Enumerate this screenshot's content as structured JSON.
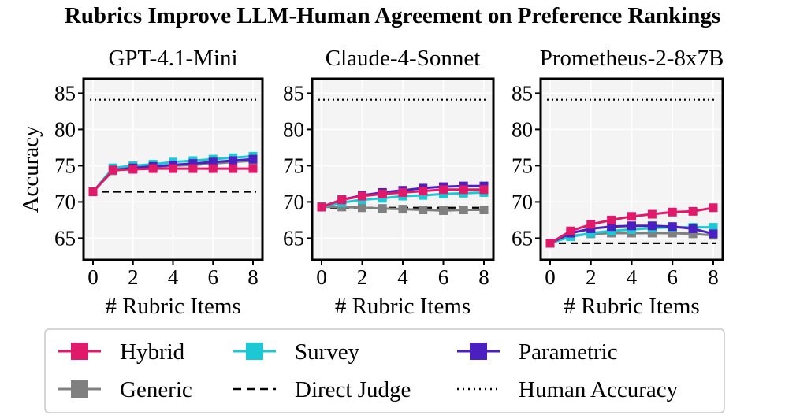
{
  "figure": {
    "title": "Rubrics Improve LLM-Human Agreement on Preference Rankings"
  },
  "colors": {
    "Hybrid": "#e0196b",
    "Survey": "#1cc8d4",
    "Parametric": "#4a20c0",
    "Generic": "#808080",
    "Direct Judge": "#000000",
    "Human Accuracy": "#000000",
    "panel_bg": "#f4f4f4",
    "grid": "#ffffff"
  },
  "legend": {
    "placement": "bottom",
    "entries": [
      {
        "name": "Hybrid",
        "style": "line-square"
      },
      {
        "name": "Survey",
        "style": "line-square"
      },
      {
        "name": "Parametric",
        "style": "line-square"
      },
      {
        "name": "Generic",
        "style": "line-square"
      },
      {
        "name": "Direct Judge",
        "style": "dashed"
      },
      {
        "name": "Human Accuracy",
        "style": "dotted"
      }
    ]
  },
  "chart_data": [
    {
      "type": "line",
      "title": "GPT-4.1-Mini",
      "xlabel": "# Rubric Items",
      "ylabel": "Accuracy",
      "xlim": [
        0,
        8
      ],
      "ylim": [
        62,
        87
      ],
      "xticks": [
        0,
        2,
        4,
        6,
        8
      ],
      "yticks": [
        65,
        70,
        75,
        80,
        85
      ],
      "grid": true,
      "x": [
        0,
        1,
        2,
        3,
        4,
        5,
        6,
        7,
        8
      ],
      "series": [
        {
          "name": "Generic",
          "values": [
            71.4,
            74.3,
            74.6,
            74.8,
            75.0,
            75.1,
            75.3,
            75.5,
            75.7
          ]
        },
        {
          "name": "Survey",
          "values": [
            71.4,
            74.7,
            75.0,
            75.2,
            75.5,
            75.7,
            75.9,
            76.1,
            76.3
          ]
        },
        {
          "name": "Parametric",
          "values": [
            71.4,
            74.4,
            74.7,
            74.9,
            75.1,
            75.3,
            75.5,
            75.7,
            75.9
          ]
        },
        {
          "name": "Hybrid",
          "values": [
            71.4,
            74.4,
            74.5,
            74.6,
            74.6,
            74.6,
            74.6,
            74.6,
            74.6
          ]
        }
      ],
      "reference_lines": [
        {
          "name": "Direct Judge",
          "value": 71.4
        },
        {
          "name": "Human Accuracy",
          "value": 84.1
        }
      ]
    },
    {
      "type": "line",
      "title": "Claude-4-Sonnet",
      "xlabel": "# Rubric Items",
      "ylabel": "",
      "xlim": [
        0,
        8
      ],
      "ylim": [
        62,
        87
      ],
      "xticks": [
        0,
        2,
        4,
        6,
        8
      ],
      "yticks": [
        65,
        70,
        75,
        80,
        85
      ],
      "grid": true,
      "x": [
        0,
        1,
        2,
        3,
        4,
        5,
        6,
        7,
        8
      ],
      "series": [
        {
          "name": "Generic",
          "values": [
            69.3,
            69.3,
            69.2,
            69.1,
            69.0,
            68.9,
            68.8,
            68.9,
            68.9
          ]
        },
        {
          "name": "Survey",
          "values": [
            69.3,
            69.9,
            70.3,
            70.5,
            70.8,
            70.9,
            71.1,
            71.2,
            71.3
          ]
        },
        {
          "name": "Parametric",
          "values": [
            69.3,
            70.3,
            70.9,
            71.3,
            71.6,
            71.9,
            72.1,
            72.2,
            72.2
          ]
        },
        {
          "name": "Hybrid",
          "values": [
            69.3,
            70.3,
            70.8,
            71.1,
            71.3,
            71.5,
            71.7,
            71.7,
            71.7
          ]
        }
      ],
      "reference_lines": [
        {
          "name": "Direct Judge",
          "value": 69.2
        },
        {
          "name": "Human Accuracy",
          "value": 84.1
        }
      ]
    },
    {
      "type": "line",
      "title": "Prometheus-2-8x7B",
      "xlabel": "# Rubric Items",
      "ylabel": "",
      "xlim": [
        0,
        8
      ],
      "ylim": [
        62,
        87
      ],
      "xticks": [
        0,
        2,
        4,
        6,
        8
      ],
      "yticks": [
        65,
        70,
        75,
        80,
        85
      ],
      "grid": true,
      "x": [
        0,
        1,
        2,
        3,
        4,
        5,
        6,
        7,
        8
      ],
      "series": [
        {
          "name": "Generic",
          "values": [
            64.3,
            65.3,
            65.6,
            65.7,
            65.7,
            65.7,
            65.7,
            65.6,
            65.4
          ]
        },
        {
          "name": "Survey",
          "values": [
            64.3,
            65.2,
            65.7,
            66.0,
            66.2,
            66.4,
            66.5,
            66.5,
            66.5
          ]
        },
        {
          "name": "Parametric",
          "values": [
            64.3,
            65.7,
            66.3,
            66.6,
            66.7,
            66.7,
            66.6,
            66.3,
            65.6
          ]
        },
        {
          "name": "Hybrid",
          "values": [
            64.3,
            66.0,
            66.9,
            67.5,
            68.0,
            68.3,
            68.6,
            68.7,
            69.2
          ]
        }
      ],
      "reference_lines": [
        {
          "name": "Direct Judge",
          "value": 64.3
        },
        {
          "name": "Human Accuracy",
          "value": 84.1
        }
      ]
    }
  ]
}
